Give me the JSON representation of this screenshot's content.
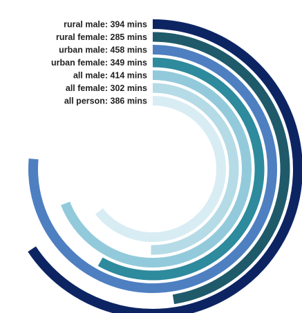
{
  "chart_data": {
    "type": "radial-bar",
    "title": "",
    "unit": "mins",
    "series": [
      {
        "label": "rural male: 394 mins",
        "category": "rural male",
        "value": 394,
        "color": "#0d2463"
      },
      {
        "label": "rural female: 285 mins",
        "category": "rural female",
        "value": 285,
        "color": "#1f5a6a"
      },
      {
        "label": "urban male: 458 mins",
        "category": "urban male",
        "value": 458,
        "color": "#4e7fc1"
      },
      {
        "label": "urban female: 349 mins",
        "category": "urban female",
        "value": 349,
        "color": "#2e8a9d"
      },
      {
        "label": "all male: 414 mins",
        "category": "all male",
        "value": 414,
        "color": "#92cadb"
      },
      {
        "label": "all female: 302 mins",
        "category": "all female",
        "value": 302,
        "color": "#b5dbe6"
      },
      {
        "label": "all person: 386 mins",
        "category": "all person",
        "value": 386,
        "color": "#d8ecf3"
      }
    ]
  }
}
